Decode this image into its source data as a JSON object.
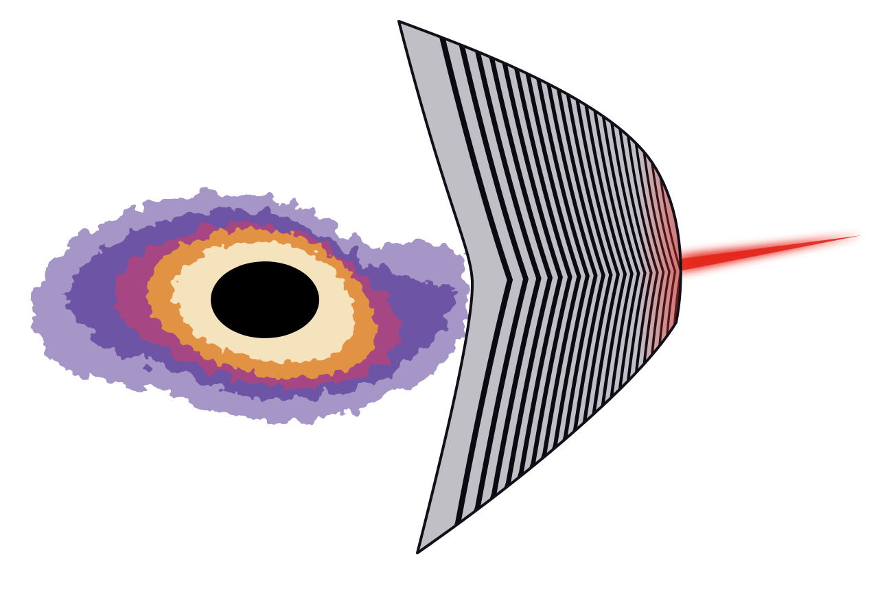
{
  "figure": {
    "elements": [
      {
        "name": "black-hole",
        "description_visible": false
      },
      {
        "name": "accretion-disk",
        "description_visible": false
      },
      {
        "name": "wavefront-sheet",
        "description_visible": false
      },
      {
        "name": "jet-beam",
        "description_visible": false
      }
    ],
    "colors": {
      "background": "#ffffff",
      "black_hole": "#000000",
      "disk_outer": "#5b3f9a",
      "disk_mid": "#b0437e",
      "disk_warm": "#e89a3a",
      "disk_inner": "#f6e8c4",
      "sheet_fill": "#c0bfc6",
      "sheet_stripe": "#0b0a12",
      "sheet_edge": "#111018",
      "beam": "#e4261c"
    },
    "stripe_count": 22
  }
}
